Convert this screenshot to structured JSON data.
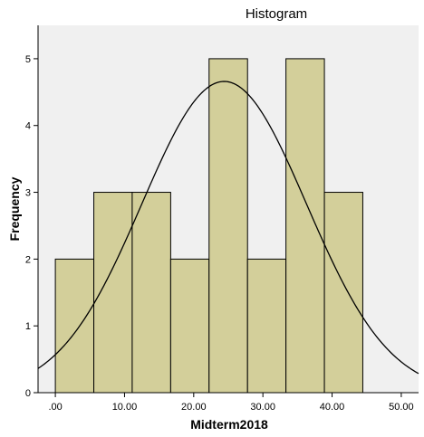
{
  "chart_data": {
    "type": "bar",
    "title": "Histogram",
    "xlabel": "Midterm2018",
    "ylabel": "Frequency",
    "bins": [
      {
        "from": 0.0,
        "to": 5.56,
        "count": 2
      },
      {
        "from": 5.56,
        "to": 11.11,
        "count": 3
      },
      {
        "from": 11.11,
        "to": 16.67,
        "count": 3
      },
      {
        "from": 16.67,
        "to": 22.22,
        "count": 2
      },
      {
        "from": 22.22,
        "to": 27.78,
        "count": 5
      },
      {
        "from": 27.78,
        "to": 33.33,
        "count": 2
      },
      {
        "from": 33.33,
        "to": 38.89,
        "count": 5
      },
      {
        "from": 38.89,
        "to": 44.44,
        "count": 3
      }
    ],
    "normal_curve": {
      "mean": 24.4,
      "sd": 11.9,
      "n": 25,
      "bin_width": 5.56
    },
    "xlim": [
      -2.5,
      52.5
    ],
    "ylim": [
      0,
      5.5
    ],
    "x_ticks": [
      ".00",
      "10.00",
      "20.00",
      "30.00",
      "40.00",
      "50.00"
    ],
    "x_tick_values": [
      0,
      10,
      20,
      30,
      40,
      50
    ],
    "y_ticks": [
      "0",
      "1",
      "2",
      "3",
      "4",
      "5"
    ],
    "y_tick_values": [
      0,
      1,
      2,
      3,
      4,
      5
    ],
    "bar_fill": "#d3cf9a",
    "plot_bg": "#f0f0f0",
    "grid": false,
    "legend": "none"
  }
}
